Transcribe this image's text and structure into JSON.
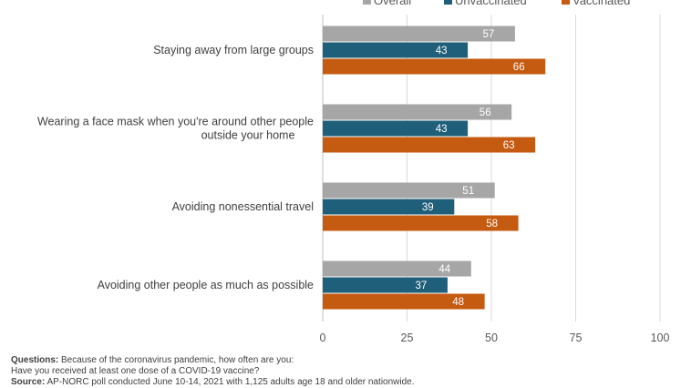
{
  "chart_data": {
    "type": "bar",
    "orientation": "horizontal",
    "categories": [
      "Staying away from large groups",
      "Wearing a face mask when you're around other people outside your home",
      "Avoiding nonessential travel",
      "Avoiding other people as much as possible"
    ],
    "series": [
      {
        "name": "Overall",
        "color": "#a6a6a6",
        "values": [
          57,
          56,
          51,
          44
        ]
      },
      {
        "name": "Unvaccinated",
        "color": "#1f5f7a",
        "values": [
          43,
          43,
          39,
          37
        ]
      },
      {
        "name": "Vaccinated",
        "color": "#c55a11",
        "values": [
          66,
          63,
          58,
          48
        ]
      }
    ],
    "xlim": [
      0,
      100
    ],
    "xticks": [
      0,
      25,
      50,
      75,
      100
    ],
    "grid": true,
    "legend_position": "top-right",
    "data_labels": true
  },
  "footnote": {
    "questions_label": "Questions:",
    "questions_text": "Because of the coronavirus pandemic, how often are you:",
    "question2_text": "Have you received at least one dose of a COVID-19 vaccine?",
    "source_label": "Source:",
    "source_text": "AP-NORC poll conducted June 10-14, 2021 with 1,125 adults age 18 and older nationwide."
  }
}
